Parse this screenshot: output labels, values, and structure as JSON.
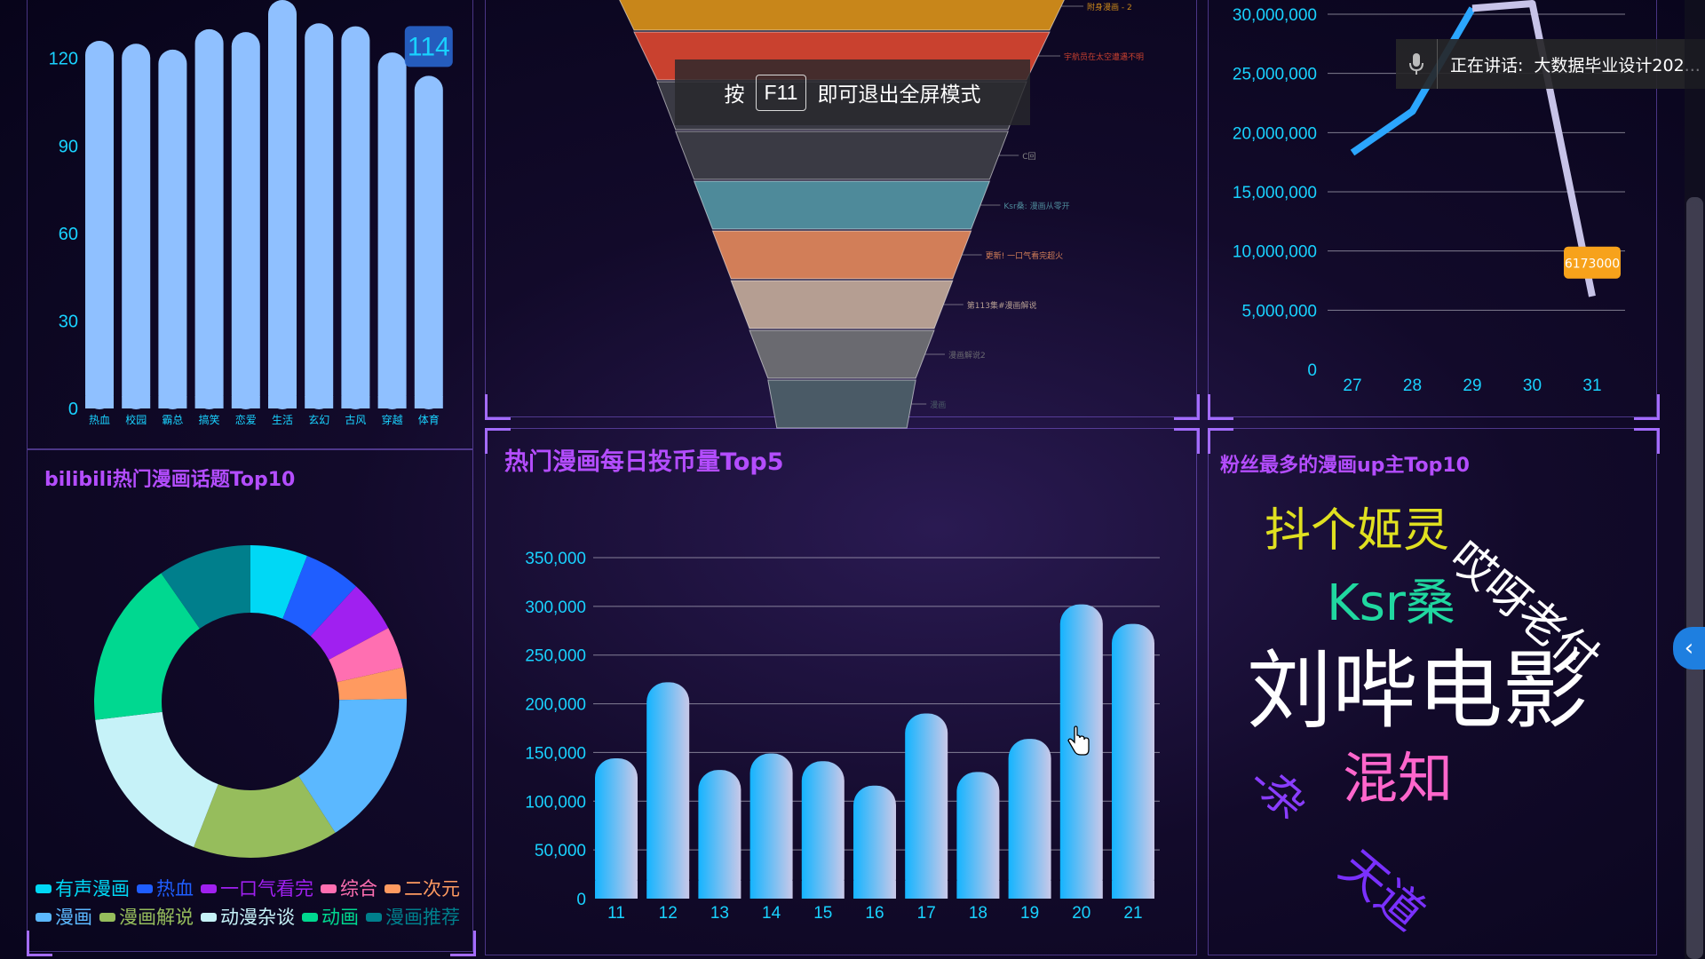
{
  "panels": {
    "topic_ring": {
      "title": "bilibili热门漫画话题Top10"
    },
    "coins": {
      "title": "热门漫画每日投币量Top5"
    },
    "fans": {
      "title": "粉丝最多的漫画up主Top10"
    }
  },
  "hint": {
    "prefix": "按",
    "key": "F11",
    "suffix": "即可退出全屏模式"
  },
  "speaking": {
    "label": "正在讲话:",
    "name": "大数据毕业设计202..."
  },
  "icons": {
    "mic": "microphone-icon",
    "side": "chevron-left-icon",
    "cursor": "hand-pointer-icon"
  },
  "colors": {
    "title": "#b44dff",
    "axis": "#19d2ff",
    "bar_light": "#8fc0ff"
  },
  "word_cloud": {
    "words": [
      {
        "text": "抖个姬灵",
        "color": "#e0e020"
      },
      {
        "text": "哎呀老付",
        "color": "#ffffff"
      },
      {
        "text": "Ksr桑",
        "color": "#20d8a0"
      },
      {
        "text": "刘哔电影",
        "color": "#ffffff"
      },
      {
        "text": "-杂",
        "color": "#8a3dff"
      },
      {
        "text": "混知",
        "color": "#ff66cc"
      },
      {
        "text": "天道",
        "color": "#7a30ff"
      }
    ]
  },
  "chart_data": [
    {
      "type": "bar",
      "categories": [
        "热血",
        "校园",
        "霸总",
        "搞笑",
        "恋爱",
        "生活",
        "玄幻",
        "古风",
        "穿越",
        "体育"
      ],
      "values": [
        126,
        125,
        123,
        130,
        129,
        140,
        132,
        131,
        122,
        114
      ],
      "ylim": [
        0,
        140
      ],
      "yticks": [
        0,
        30,
        60,
        90,
        120
      ],
      "tooltip": {
        "category": "体育",
        "value": "114"
      },
      "grid": false
    },
    {
      "type": "funnel",
      "labels": [
        "附身漫画 - 2",
        "宇航员在太空遭遇不明",
        "",
        "C回",
        "Ksr桑: 漫画从零开",
        "更新! 一口气看完超火",
        "第113集#漫画解说",
        "漫画解说2",
        "漫画"
      ],
      "values": [
        100,
        90,
        80,
        72,
        64,
        56,
        48,
        40,
        32
      ],
      "colors": [
        "#c8861a",
        "#c9412f",
        "#3a3a44",
        "#3a3a44",
        "#4e8a9a",
        "#d27e58",
        "#b59e92",
        "#6a6a70",
        "#4a5a66"
      ]
    },
    {
      "type": "line",
      "x": [
        "27",
        "28",
        "29",
        "30",
        "31"
      ],
      "y": [
        18300000,
        21800000,
        30500000,
        30900000,
        6173000
      ],
      "ylim": [
        0,
        30000000
      ],
      "yticks": [
        "0",
        "5,000,000",
        "10,000,000",
        "15,000,000",
        "20,000,000",
        "25,000,000",
        "30,000,000"
      ],
      "tooltip": {
        "x": "31",
        "value": "6173000"
      },
      "grid": true
    },
    {
      "type": "pie",
      "title": "bilibili热门漫画话题Top10",
      "labels": [
        "有声漫画",
        "热血",
        "一口气看完",
        "综合",
        "二次元",
        "漫画",
        "漫画解说",
        "动漫杂谈",
        "动画",
        "漫画推荐"
      ],
      "values": [
        5.5,
        5.5,
        5,
        4,
        3,
        15,
        14,
        16,
        16,
        9
      ],
      "colors": [
        "#00d8f5",
        "#1f5eff",
        "#a020f0",
        "#ff6fb1",
        "#ff9a60",
        "#5bb8ff",
        "#96bd5c",
        "#c6f2f8",
        "#00d890",
        "#007f8c"
      ],
      "legend": "bottom"
    },
    {
      "type": "bar",
      "title": "热门漫画每日投币量Top5",
      "categories": [
        "11",
        "12",
        "13",
        "14",
        "15",
        "16",
        "17",
        "18",
        "19",
        "20",
        "21"
      ],
      "values": [
        144000,
        222000,
        132000,
        149000,
        141000,
        116000,
        190000,
        130000,
        164000,
        302000,
        282000
      ],
      "ylim": [
        0,
        350000
      ],
      "yticks": [
        "0",
        "50,000",
        "100,000",
        "150,000",
        "200,000",
        "250,000",
        "300,000",
        "350,000"
      ],
      "grid": true
    }
  ]
}
